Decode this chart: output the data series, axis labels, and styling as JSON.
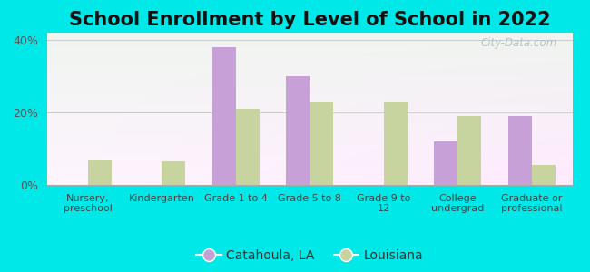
{
  "title": "School Enrollment by Level of School in 2022",
  "categories": [
    "Nursery,\npreschool",
    "Kindergarten",
    "Grade 1 to 4",
    "Grade 5 to 8",
    "Grade 9 to\n12",
    "College\nundergrad",
    "Graduate or\nprofessional"
  ],
  "catahoula": [
    0,
    0,
    38,
    30,
    0,
    12,
    19
  ],
  "louisiana": [
    7,
    6.5,
    21,
    23,
    23,
    19,
    5.5
  ],
  "catahoula_color": "#c8a0d8",
  "louisiana_color": "#c8d4a0",
  "ylim": [
    0,
    42
  ],
  "yticks": [
    0,
    20,
    40
  ],
  "ytick_labels": [
    "0%",
    "20%",
    "40%"
  ],
  "background_color": "#00e8e8",
  "title_fontsize": 15,
  "legend_labels": [
    "Catahoula, LA",
    "Louisiana"
  ],
  "bar_width": 0.32,
  "watermark": "City-Data.com"
}
